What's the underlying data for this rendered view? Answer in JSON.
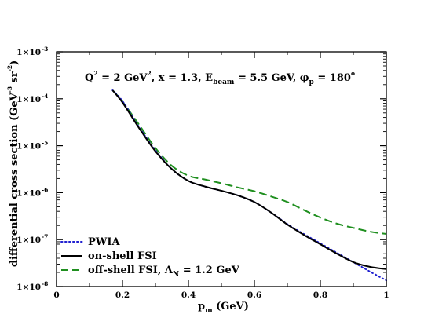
{
  "chart_data": {
    "type": "line",
    "title": "",
    "annotation": {
      "parts": [
        "Q",
        "2",
        " = 2 GeV",
        "2",
        ", x = 1.3, E",
        "beam",
        " = 5.5 GeV, φ",
        "p",
        " = 180",
        "o"
      ]
    },
    "xlabel": {
      "main": "p",
      "sub": "m",
      "rest": " (GeV)"
    },
    "ylabel": {
      "main": "differential cross section (GeV",
      "sup1": "-3",
      "mid": " sr",
      "sup2": "-2",
      "end": ")"
    },
    "xlim": [
      0,
      1
    ],
    "ylim_log10": [
      -8,
      -3
    ],
    "yscale": "log",
    "xticks": [
      {
        "v": 0,
        "label": "0"
      },
      {
        "v": 0.2,
        "label": "0.2"
      },
      {
        "v": 0.4,
        "label": "0.4"
      },
      {
        "v": 0.6,
        "label": "0.6"
      },
      {
        "v": 0.8,
        "label": "0.8"
      },
      {
        "v": 1,
        "label": "1"
      }
    ],
    "yticks": [
      {
        "v": -8,
        "mant": "1×10",
        "exp": "-8"
      },
      {
        "v": -7,
        "mant": "1×10",
        "exp": "-7"
      },
      {
        "v": -6,
        "mant": "1×10",
        "exp": "-6"
      },
      {
        "v": -5,
        "mant": "1×10",
        "exp": "-5"
      },
      {
        "v": -4,
        "mant": "1×10",
        "exp": "-4"
      },
      {
        "v": -3,
        "mant": "1×10",
        "exp": "-3"
      }
    ],
    "legend_position": "bottom-left",
    "series": [
      {
        "name": "PWIA",
        "color": "#2020d0",
        "style": "dotted",
        "x": [
          0.17,
          0.2,
          0.25,
          0.3,
          0.35,
          0.4,
          0.45,
          0.5,
          0.55,
          0.6,
          0.65,
          0.7,
          0.75,
          0.8,
          0.85,
          0.9,
          0.95,
          1.0
        ],
        "log10y": [
          -3.82,
          -4.05,
          -4.6,
          -5.1,
          -5.5,
          -5.75,
          -5.87,
          -5.96,
          -6.06,
          -6.2,
          -6.42,
          -6.67,
          -6.88,
          -7.08,
          -7.28,
          -7.48,
          -7.68,
          -7.87
        ]
      },
      {
        "name": "on-shell FSI",
        "color": "#000000",
        "style": "solid",
        "x": [
          0.17,
          0.2,
          0.25,
          0.3,
          0.35,
          0.4,
          0.45,
          0.5,
          0.55,
          0.6,
          0.65,
          0.7,
          0.75,
          0.8,
          0.85,
          0.9,
          0.95,
          1.0
        ],
        "log10y": [
          -3.82,
          -4.08,
          -4.62,
          -5.12,
          -5.5,
          -5.75,
          -5.87,
          -5.96,
          -6.06,
          -6.2,
          -6.42,
          -6.68,
          -6.9,
          -7.1,
          -7.3,
          -7.48,
          -7.58,
          -7.63
        ]
      },
      {
        "name": "off-shell FSI, Λ",
        "name_sub": "N",
        "name_rest": " = 1.2 GeV",
        "color": "#1f8f1f",
        "style": "dashed",
        "x": [
          0.17,
          0.2,
          0.25,
          0.3,
          0.35,
          0.4,
          0.45,
          0.5,
          0.55,
          0.6,
          0.65,
          0.7,
          0.75,
          0.8,
          0.85,
          0.9,
          0.95,
          1.0
        ],
        "log10y": [
          -3.82,
          -4.06,
          -4.55,
          -5.05,
          -5.43,
          -5.64,
          -5.72,
          -5.8,
          -5.89,
          -5.97,
          -6.08,
          -6.2,
          -6.37,
          -6.53,
          -6.66,
          -6.75,
          -6.83,
          -6.88
        ]
      }
    ]
  }
}
